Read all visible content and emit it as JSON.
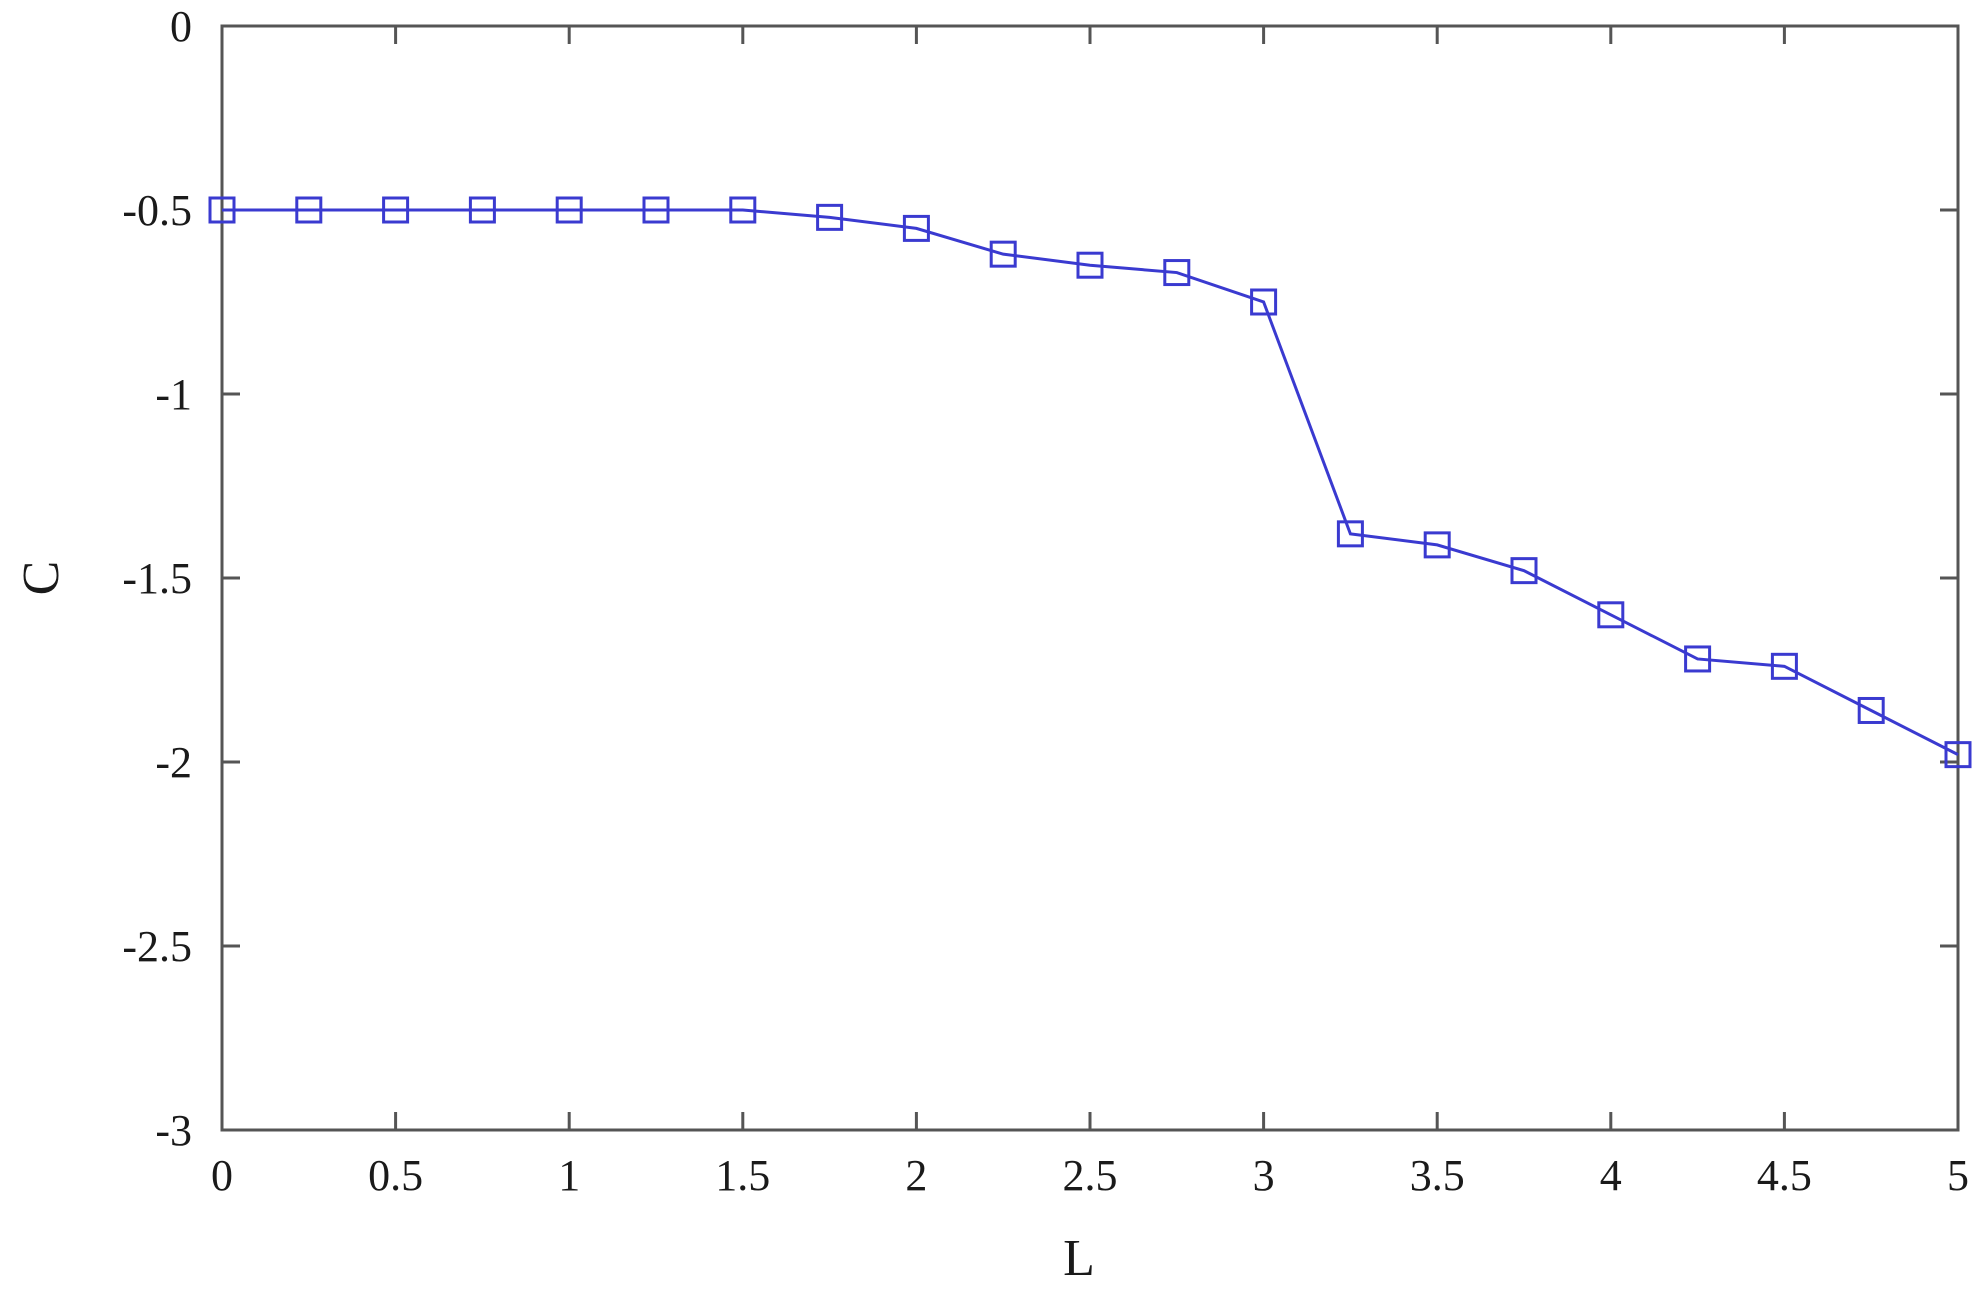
{
  "chart_data": {
    "type": "line",
    "xlabel": "L",
    "ylabel": "C",
    "xlim": [
      0,
      5
    ],
    "ylim": [
      -3,
      0
    ],
    "xticks": [
      0,
      0.5,
      1,
      1.5,
      2,
      2.5,
      3,
      3.5,
      4,
      4.5,
      5
    ],
    "xtick_labels": [
      "0",
      "0.5",
      "1",
      "1.5",
      "2",
      "2.5",
      "3",
      "3.5",
      "4",
      "4.5",
      "5"
    ],
    "yticks": [
      0,
      -0.5,
      -1,
      -1.5,
      -2,
      -2.5,
      -3
    ],
    "ytick_labels": [
      "0",
      "-0.5",
      "-1",
      "-1.5",
      "-2",
      "-2.5",
      "-3"
    ],
    "grid": false,
    "marker": "square",
    "series": [
      {
        "color": "#3a3ad0",
        "x": [
          0,
          0.25,
          0.5,
          0.75,
          1,
          1.25,
          1.5,
          1.75,
          2,
          2.25,
          2.5,
          2.75,
          3,
          3.25,
          3.5,
          3.75,
          4,
          4.25,
          4.5,
          4.75,
          5
        ],
        "y": [
          -0.5,
          -0.5,
          -0.5,
          -0.5,
          -0.5,
          -0.5,
          -0.5,
          -0.52,
          -0.55,
          -0.62,
          -0.65,
          -0.67,
          -0.75,
          -1.38,
          -1.41,
          -1.48,
          -1.6,
          -1.72,
          -1.74,
          -1.86,
          -1.98
        ]
      }
    ]
  }
}
